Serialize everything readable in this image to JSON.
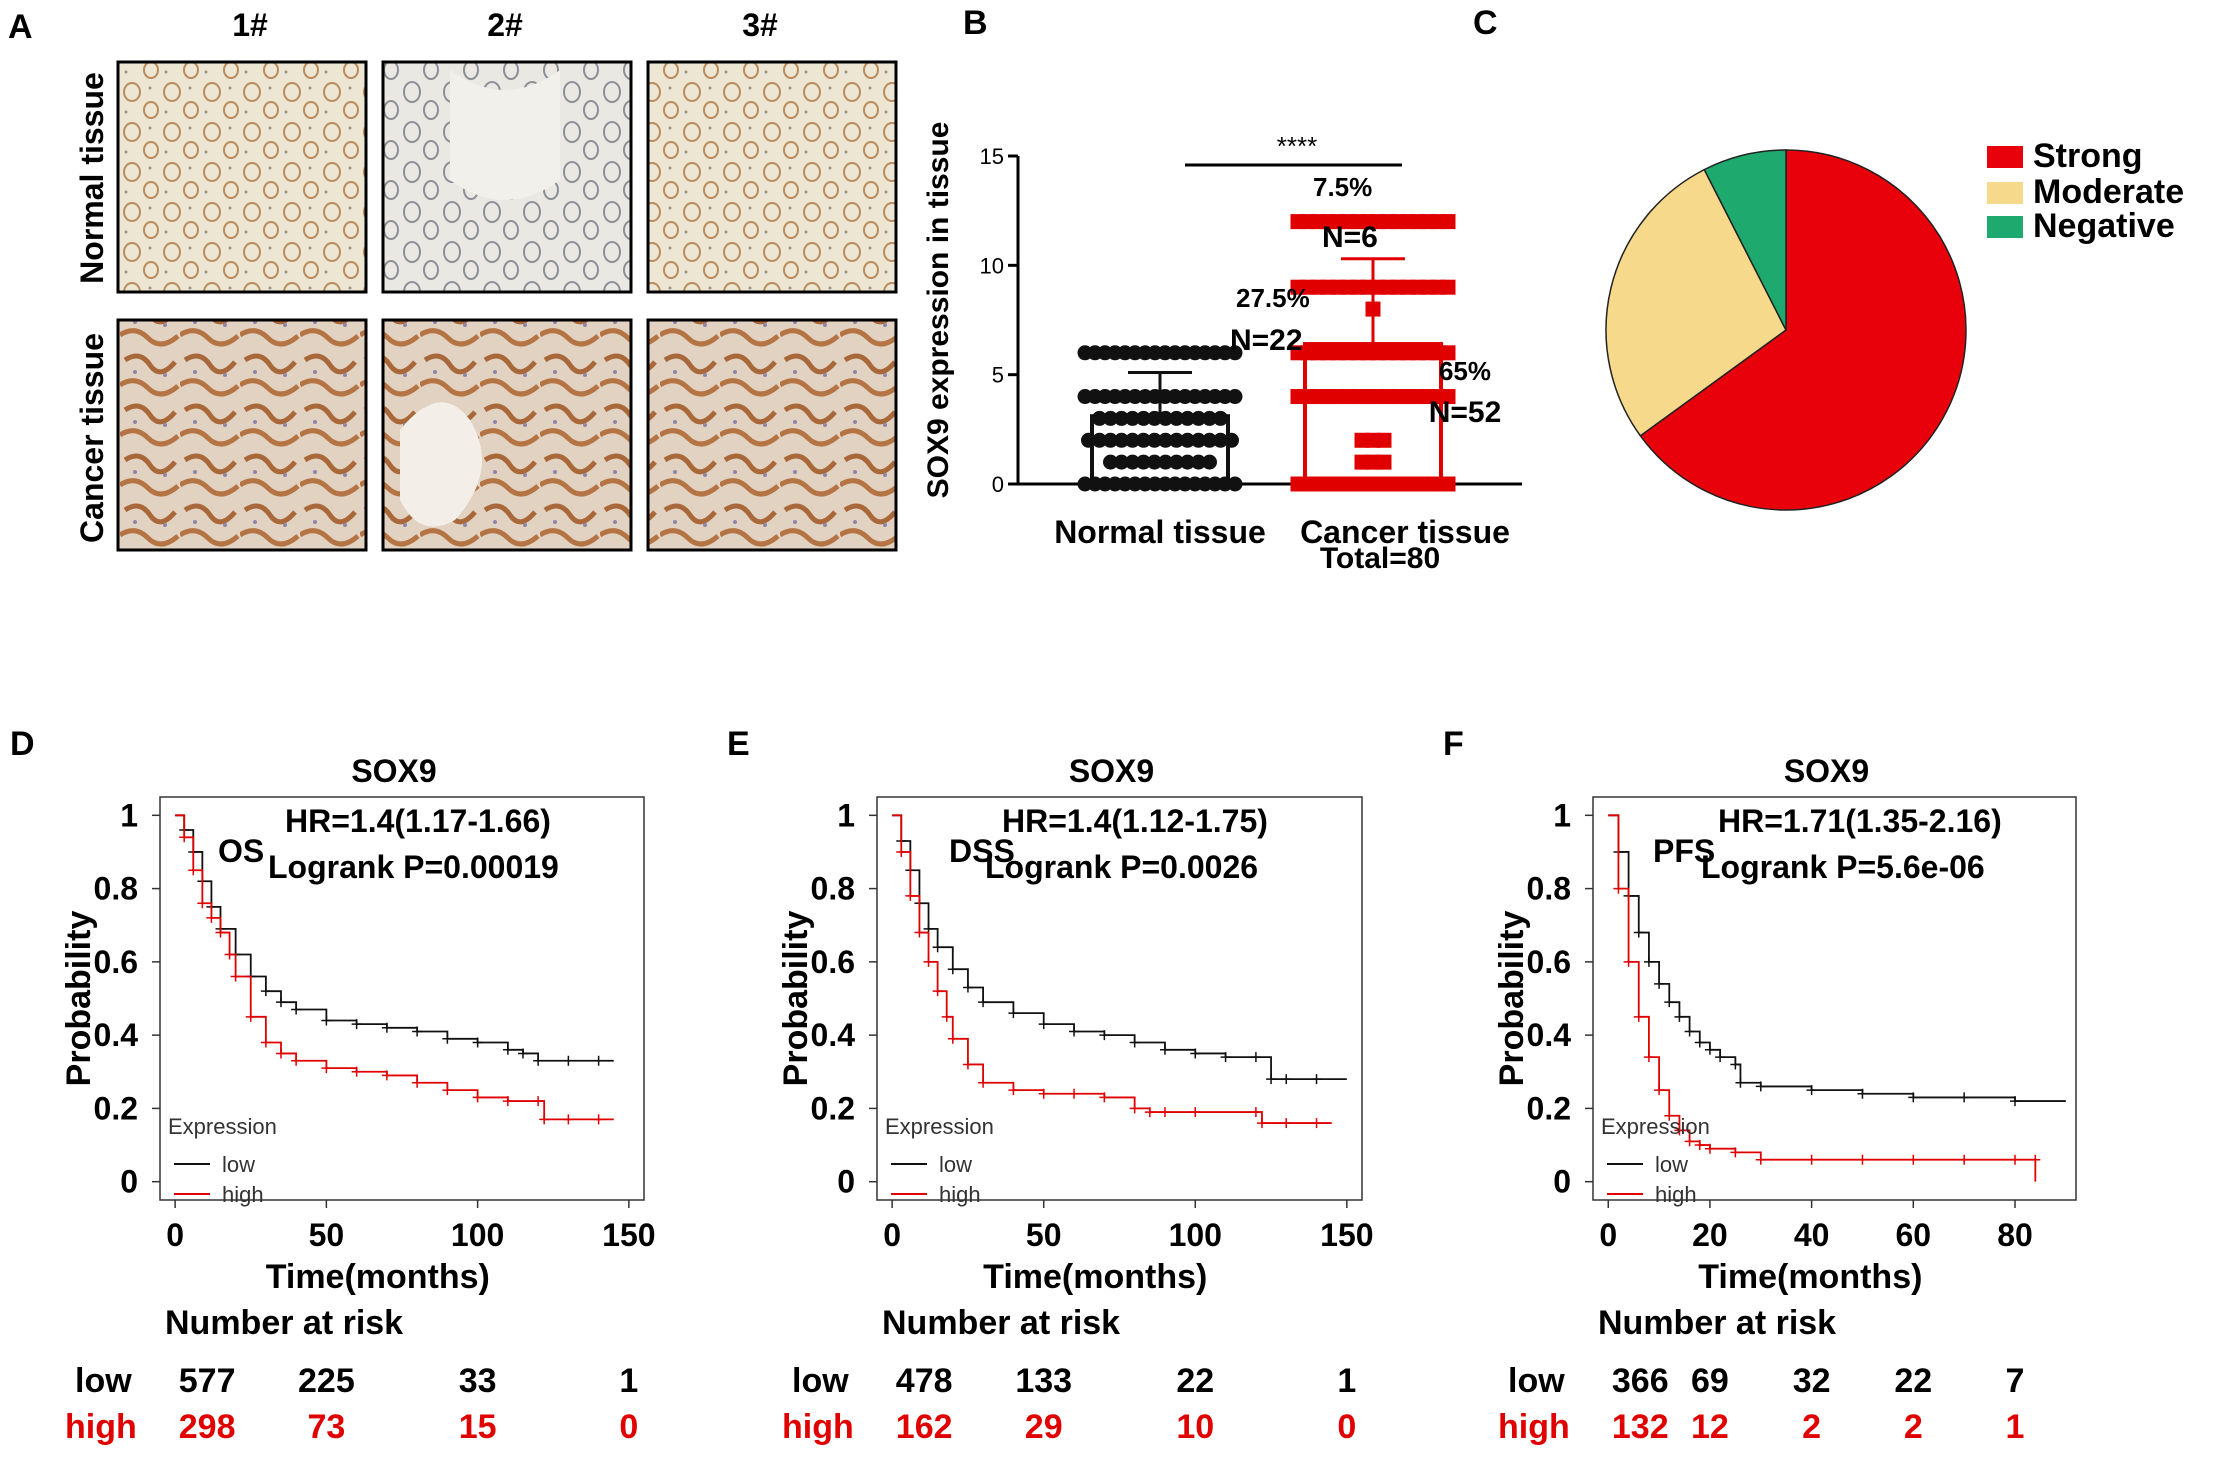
{
  "colors": {
    "red": "#e00000",
    "black": "#111111",
    "strong": "#e8000b",
    "moderate": "#f6d98a",
    "negative": "#1eaa6e",
    "tissue_normal_bg": "#ece6d4",
    "tissue_cancer_bg": "#d9c3aa",
    "gland": "#b07a4c"
  },
  "panel_a": {
    "letter": "A",
    "columns": [
      "1#",
      "2#",
      "3#"
    ],
    "rows": [
      "Normal tissue",
      "Cancer tissue"
    ]
  },
  "chart_data": [
    {
      "panel": "B",
      "type": "bar",
      "ylabel": "SOX9 expression in tissue",
      "xlabel": "",
      "categories": [
        "Normal tissue",
        "Cancer tissue"
      ],
      "values": [
        3.1,
        6.4
      ],
      "sd": [
        2.0,
        3.9
      ],
      "ylim": [
        0,
        15
      ],
      "yticks": [
        "0",
        "5",
        "10",
        "15"
      ],
      "significance": "****",
      "points": {
        "Normal tissue": [
          {
            "y": 6,
            "n": 16
          },
          {
            "y": 4,
            "n": 16
          },
          {
            "y": 3,
            "n": 12
          },
          {
            "y": 2,
            "n": 14
          },
          {
            "y": 1,
            "n": 10
          },
          {
            "y": 0,
            "n": 16
          }
        ],
        "Cancer tissue": [
          {
            "y": 12,
            "n": 16
          },
          {
            "y": 9,
            "n": 16
          },
          {
            "y": 8,
            "n": 1
          },
          {
            "y": 6,
            "n": 16
          },
          {
            "y": 4,
            "n": 16
          },
          {
            "y": 2,
            "n": 3
          },
          {
            "y": 1,
            "n": 3
          },
          {
            "y": 0,
            "n": 16
          }
        ]
      }
    },
    {
      "panel": "C",
      "type": "pie",
      "title": "Total=80",
      "slices": [
        {
          "name": "Strong",
          "value": 65,
          "pct": "65%",
          "n": "N=52"
        },
        {
          "name": "Moderate",
          "value": 27.5,
          "pct": "27.5%",
          "n": "N=22"
        },
        {
          "name": "Negative",
          "value": 7.5,
          "pct": "7.5%",
          "n": "N=6"
        }
      ],
      "legend": [
        "Strong",
        "Moderate",
        "Negative"
      ]
    },
    {
      "panel": "D",
      "type": "line",
      "title": "SOX9",
      "endpoint": "OS",
      "hr": "HR=1.4(1.17-1.66)",
      "logrank": "Logrank P=0.00019",
      "xlabel": "Time(months)",
      "ylabel": "Probability",
      "xlim": [
        -5,
        155
      ],
      "ylim": [
        -0.05,
        1.05
      ],
      "xticks": [
        "0",
        "50",
        "100",
        "150"
      ],
      "yticks": [
        "0",
        "0.2",
        "0.4",
        "0.6",
        "0.8",
        "1"
      ],
      "legend_title": "Expression",
      "series": [
        {
          "name": "low",
          "x": [
            0,
            3,
            6,
            9,
            12,
            15,
            20,
            25,
            30,
            35,
            40,
            50,
            60,
            70,
            80,
            90,
            100,
            110,
            115,
            120,
            130,
            140,
            145
          ],
          "y": [
            1,
            0.96,
            0.9,
            0.82,
            0.75,
            0.69,
            0.62,
            0.56,
            0.52,
            0.49,
            0.47,
            0.44,
            0.43,
            0.42,
            0.41,
            0.39,
            0.38,
            0.36,
            0.35,
            0.33,
            0.33,
            0.33,
            0.33
          ]
        },
        {
          "name": "high",
          "x": [
            0,
            3,
            6,
            9,
            12,
            15,
            18,
            20,
            25,
            30,
            35,
            40,
            50,
            60,
            70,
            80,
            90,
            100,
            110,
            120,
            122,
            130,
            140,
            145
          ],
          "y": [
            1,
            0.94,
            0.85,
            0.76,
            0.72,
            0.68,
            0.62,
            0.56,
            0.45,
            0.38,
            0.35,
            0.33,
            0.31,
            0.3,
            0.29,
            0.27,
            0.25,
            0.23,
            0.22,
            0.22,
            0.17,
            0.17,
            0.17,
            0.17
          ]
        }
      ],
      "risk_title": "Number at risk",
      "risk": {
        "times": [
          0,
          50,
          100,
          150
        ],
        "low": [
          "577",
          "225",
          "33",
          "1"
        ],
        "high": [
          "298",
          "73",
          "15",
          "0"
        ]
      }
    },
    {
      "panel": "E",
      "type": "line",
      "title": "SOX9",
      "endpoint": "DSS",
      "hr": "HR=1.4(1.12-1.75)",
      "logrank": "Logrank P=0.0026",
      "xlabel": "Time(months)",
      "ylabel": "Probability",
      "xlim": [
        -5,
        155
      ],
      "ylim": [
        -0.05,
        1.05
      ],
      "xticks": [
        "0",
        "50",
        "100",
        "150"
      ],
      "yticks": [
        "0",
        "0.2",
        "0.4",
        "0.6",
        "0.8",
        "1"
      ],
      "legend_title": "Expression",
      "series": [
        {
          "name": "low",
          "x": [
            0,
            3,
            6,
            9,
            12,
            15,
            20,
            25,
            30,
            40,
            50,
            60,
            70,
            80,
            90,
            100,
            110,
            120,
            125,
            130,
            140,
            150
          ],
          "y": [
            1,
            0.93,
            0.85,
            0.76,
            0.69,
            0.64,
            0.58,
            0.53,
            0.49,
            0.46,
            0.43,
            0.41,
            0.4,
            0.38,
            0.36,
            0.35,
            0.34,
            0.34,
            0.28,
            0.28,
            0.28,
            0.28
          ]
        },
        {
          "name": "high",
          "x": [
            0,
            3,
            6,
            9,
            12,
            15,
            18,
            20,
            25,
            30,
            40,
            50,
            60,
            70,
            80,
            85,
            90,
            100,
            120,
            122,
            130,
            140,
            145
          ],
          "y": [
            1,
            0.9,
            0.78,
            0.68,
            0.6,
            0.52,
            0.45,
            0.39,
            0.32,
            0.27,
            0.25,
            0.24,
            0.24,
            0.23,
            0.2,
            0.19,
            0.19,
            0.19,
            0.19,
            0.16,
            0.16,
            0.16,
            0.16
          ]
        }
      ],
      "risk_title": "Number at risk",
      "risk": {
        "times": [
          0,
          50,
          100,
          150
        ],
        "low": [
          "478",
          "133",
          "22",
          "1"
        ],
        "high": [
          "162",
          "29",
          "10",
          "0"
        ]
      }
    },
    {
      "panel": "F",
      "type": "line",
      "title": "SOX9",
      "endpoint": "PFS",
      "hr": "HR=1.71(1.35-2.16)",
      "logrank": "Logrank P=5.6e-06",
      "xlabel": "Time(months)",
      "ylabel": "Probability",
      "xlim": [
        -3,
        92
      ],
      "ylim": [
        -0.05,
        1.05
      ],
      "xticks": [
        "0",
        "20",
        "40",
        "60",
        "80"
      ],
      "yticks": [
        "0",
        "0.2",
        "0.4",
        "0.6",
        "0.8",
        "1"
      ],
      "legend_title": "Expression",
      "series": [
        {
          "name": "low",
          "x": [
            0,
            2,
            4,
            6,
            8,
            10,
            12,
            14,
            16,
            18,
            20,
            22,
            25,
            26,
            30,
            40,
            50,
            60,
            70,
            80,
            90
          ],
          "y": [
            1,
            0.9,
            0.78,
            0.68,
            0.6,
            0.54,
            0.49,
            0.45,
            0.41,
            0.38,
            0.36,
            0.34,
            0.32,
            0.27,
            0.26,
            0.25,
            0.24,
            0.23,
            0.23,
            0.22,
            0.22
          ]
        },
        {
          "name": "high",
          "x": [
            0,
            2,
            4,
            6,
            8,
            10,
            12,
            14,
            16,
            18,
            20,
            25,
            30,
            40,
            50,
            60,
            70,
            80,
            84,
            84
          ],
          "y": [
            1,
            0.8,
            0.6,
            0.45,
            0.34,
            0.25,
            0.18,
            0.14,
            0.11,
            0.1,
            0.09,
            0.08,
            0.06,
            0.06,
            0.06,
            0.06,
            0.06,
            0.06,
            0.06,
            0.0
          ]
        }
      ],
      "risk_title": "Number at risk",
      "risk": {
        "times": [
          0,
          20,
          40,
          60,
          80
        ],
        "low": [
          "366",
          "69",
          "32",
          "22",
          "7"
        ],
        "high": [
          "132",
          "12",
          "2",
          "2",
          "1"
        ]
      }
    }
  ]
}
